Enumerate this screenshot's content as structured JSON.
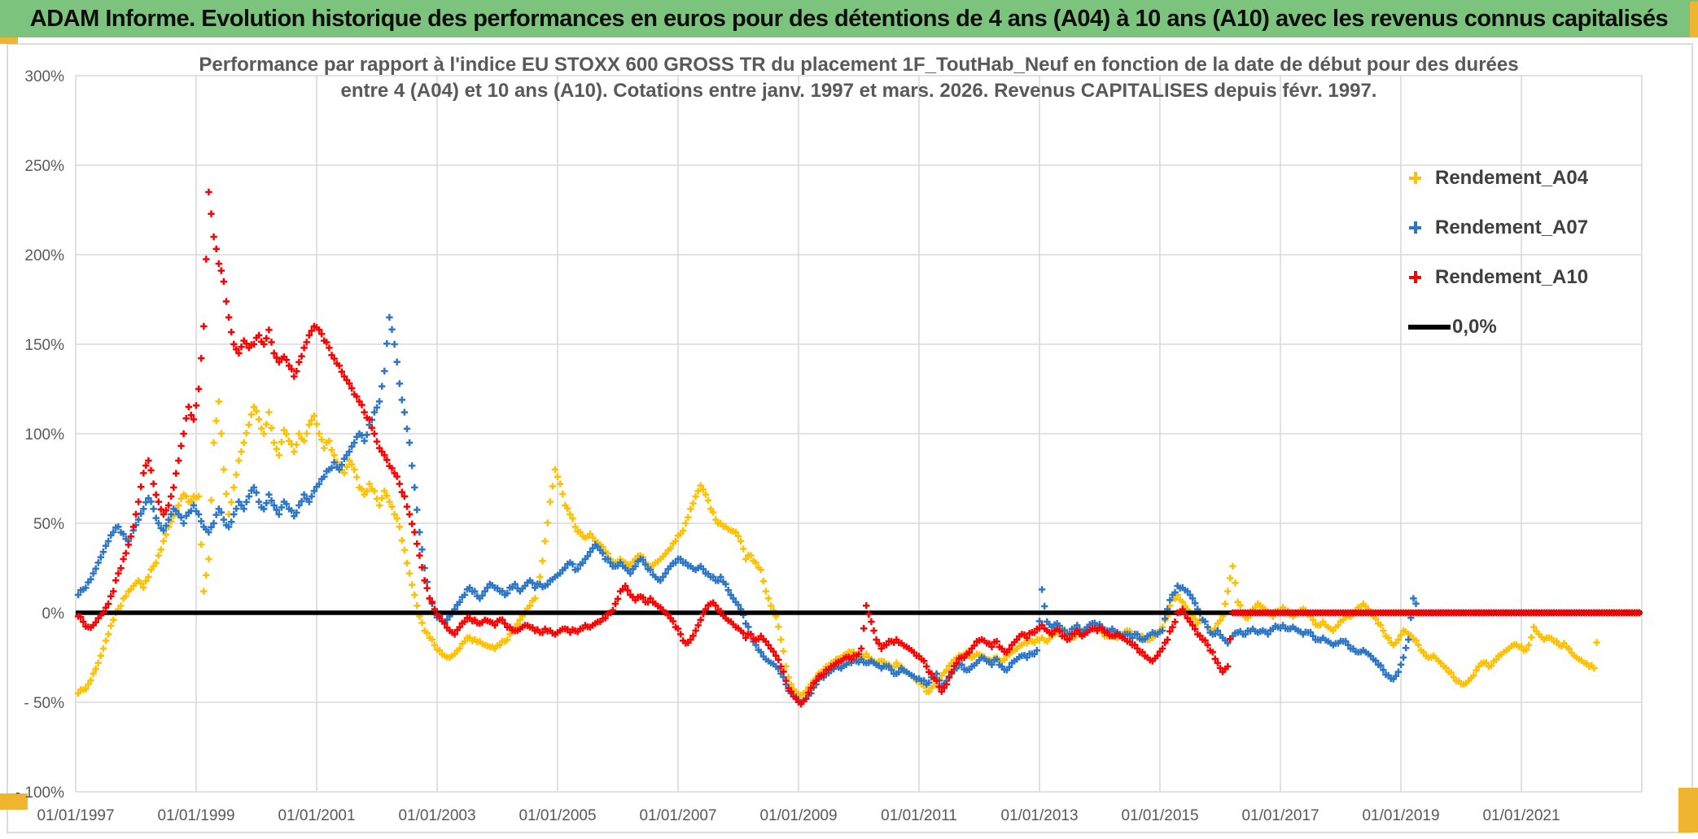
{
  "header": {
    "title": "ADAM Informe. Evolution historique des performances en euros pour des détentions de 4 ans (A04) à 10 ans (A10) avec les revenus connus capitalisés"
  },
  "chart": {
    "title_line1": "Performance par rapport à l'indice EU STOXX 600 GROSS TR  du placement 1F_ToutHab_Neuf en fonction de la date de début pour des durées",
    "title_line2": "entre 4 (A04) et 10 ans (A10). Cotations entre janv. 1997 et mars. 2026. Revenus CAPITALISES depuis févr. 1997.",
    "legend": {
      "items": [
        {
          "label": "Rendement_A04",
          "color": "#FFC000"
        },
        {
          "label": "Rendement_A07",
          "color": "#2B76C5"
        },
        {
          "label": "Rendement_A10",
          "color": "#FF0000"
        }
      ],
      "zero_line_label": "0,0%"
    },
    "y_axis": {
      "labels": [
        "300%",
        "250%",
        "200%",
        "150%",
        "100%",
        "50%",
        "0%",
        "- 50%",
        "- 100%"
      ],
      "values": [
        300,
        250,
        200,
        150,
        100,
        50,
        0,
        -50,
        -100
      ]
    },
    "x_axis": {
      "labels": [
        "01/01/1997",
        "01/01/1999",
        "01/01/2001",
        "01/01/2003",
        "01/01/2005",
        "01/01/2007",
        "01/01/2009",
        "01/01/2011",
        "01/01/2013",
        "01/01/2015",
        "01/01/2017",
        "01/01/2019",
        "01/01/2021"
      ],
      "years": [
        1997,
        1999,
        2001,
        2003,
        2005,
        2007,
        2009,
        2011,
        2013,
        2015,
        2017,
        2019,
        2021
      ]
    },
    "colors": {
      "grid": "#D9D9D9",
      "axis_text": "#595959",
      "zero_line": "#000000",
      "header_green": "#7CC47D",
      "frame_gold": "#EFB52E"
    }
  },
  "chart_data": {
    "type": "scatter",
    "title": "Performance vs EU STOXX 600 GROSS TR du placement 1F_ToutHab_Neuf",
    "x_unit": "date de début (année décimale)",
    "y_unit": "performance %",
    "x_range": [
      1997.0,
      2023.0
    ],
    "y_range": [
      -100,
      300
    ],
    "grid": true,
    "legend_position": "right-top",
    "reference_line": {
      "value": 0,
      "label": "0,0%",
      "color": "#000000"
    },
    "sampling": "monthly estimates, percent vs index; trailing zeros = future start dates plotted at 0%",
    "start_year": 1997,
    "step_months": 1,
    "series": [
      {
        "name": "Rendement_A04",
        "color": "#FFC000",
        "values": [
          -45,
          -43,
          -40,
          -34,
          -28,
          -20,
          -12,
          -4,
          2,
          8,
          12,
          15,
          18,
          14,
          20,
          26,
          32,
          40,
          48,
          54,
          60,
          66,
          62,
          65,
          65,
          12,
          30,
          95,
          118,
          80,
          55,
          70,
          85,
          95,
          105,
          115,
          108,
          100,
          112,
          95,
          88,
          102,
          96,
          90,
          100,
          96,
          105,
          110,
          100,
          92,
          96,
          88,
          82,
          78,
          85,
          80,
          70,
          66,
          72,
          68,
          60,
          68,
          62,
          55,
          48,
          35,
          22,
          10,
          -2,
          -10,
          -14,
          -18,
          -21,
          -24,
          -25,
          -23,
          -20,
          -16,
          -14,
          -15,
          -16,
          -18,
          -19,
          -20,
          -18,
          -16,
          -12,
          -8,
          -4,
          0,
          4,
          8,
          20,
          40,
          62,
          80,
          72,
          60,
          55,
          48,
          45,
          42,
          44,
          40,
          38,
          34,
          30,
          28,
          30,
          28,
          26,
          30,
          32,
          28,
          26,
          28,
          30,
          33,
          36,
          40,
          44,
          50,
          58,
          65,
          71,
          66,
          58,
          52,
          50,
          48,
          46,
          45,
          40,
          30,
          32,
          28,
          24,
          12,
          4,
          -2,
          -15,
          -30,
          -40,
          -44,
          -46,
          -44,
          -40,
          -37,
          -33,
          -30,
          -28,
          -26,
          -25,
          -23,
          -22,
          -24,
          -25,
          -23,
          -26,
          -28,
          -27,
          -29,
          -31,
          -28,
          -30,
          -33,
          -35,
          -38,
          -40,
          -44,
          -42,
          -38,
          -35,
          -32,
          -28,
          -26,
          -24,
          -22,
          -25,
          -23,
          -24,
          -26,
          -28,
          -25,
          -27,
          -24,
          -22,
          -20,
          -18,
          -17,
          -16,
          -15,
          -14,
          -16,
          -13,
          -11,
          -9,
          -12,
          -14,
          -12,
          -10,
          -11,
          -9,
          -10,
          -11,
          -13,
          -12,
          -14,
          -12,
          -10,
          -12,
          -14,
          -13,
          -15,
          -14,
          -12,
          -8,
          -2,
          8,
          10,
          6,
          2,
          -2,
          -6,
          -4,
          -8,
          -10,
          -6,
          -2,
          12,
          26,
          6,
          0,
          -3,
          2,
          5,
          3,
          0,
          -2,
          1,
          3,
          1,
          -2,
          0,
          2,
          -1,
          -4,
          -7,
          -5,
          -8,
          -10,
          -7,
          -4,
          -2,
          0,
          3,
          5,
          2,
          -2,
          -6,
          -10,
          -14,
          -18,
          -15,
          -10,
          -12,
          -15,
          -18,
          -22,
          -25,
          -24,
          -27,
          -30,
          -33,
          -36,
          -38,
          -40,
          -38,
          -35,
          -30,
          -28,
          -30,
          -27,
          -24,
          -22,
          -20,
          -18,
          -19,
          -21,
          -18,
          -8,
          -12,
          -15,
          -14,
          -16,
          -18,
          -17,
          -20,
          -24,
          -26,
          -28,
          -30,
          -31,
          0,
          0,
          0,
          0,
          0,
          0,
          0,
          0,
          0
        ]
      },
      {
        "name": "Rendement_A07",
        "color": "#2B76C5",
        "values": [
          10,
          13,
          17,
          22,
          28,
          34,
          40,
          45,
          48,
          44,
          40,
          46,
          52,
          58,
          64,
          58,
          50,
          46,
          52,
          58,
          55,
          50,
          56,
          60,
          55,
          48,
          45,
          50,
          58,
          52,
          48,
          55,
          62,
          58,
          65,
          70,
          62,
          58,
          66,
          60,
          55,
          62,
          58,
          54,
          60,
          66,
          62,
          68,
          72,
          76,
          80,
          84,
          80,
          86,
          90,
          95,
          100,
          96,
          105,
          112,
          118,
          135,
          165,
          150,
          128,
          112,
          95,
          70,
          45,
          25,
          8,
          0,
          -3,
          -5,
          -2,
          2,
          6,
          10,
          14,
          12,
          8,
          12,
          16,
          14,
          12,
          10,
          14,
          16,
          12,
          15,
          18,
          14,
          16,
          15,
          18,
          20,
          22,
          25,
          28,
          24,
          27,
          30,
          34,
          38,
          35,
          30,
          28,
          26,
          28,
          25,
          22,
          26,
          30,
          27,
          24,
          20,
          18,
          22,
          26,
          28,
          30,
          28,
          26,
          24,
          26,
          22,
          20,
          18,
          20,
          16,
          10,
          6,
          2,
          -6,
          -12,
          -18,
          -22,
          -26,
          -28,
          -30,
          -34,
          -40,
          -45,
          -47,
          -50,
          -48,
          -45,
          -40,
          -36,
          -34,
          -32,
          -30,
          -31,
          -29,
          -28,
          -27,
          -26,
          -28,
          -27,
          -29,
          -31,
          -30,
          -32,
          -34,
          -31,
          -33,
          -35,
          -37,
          -38,
          -40,
          -36,
          -34,
          -41,
          -38,
          -34,
          -31,
          -29,
          -32,
          -30,
          -28,
          -25,
          -27,
          -29,
          -26,
          -30,
          -32,
          -28,
          -26,
          -24,
          -25,
          -23,
          -21,
          13,
          -5,
          -8,
          -6,
          -10,
          -12,
          -9,
          -7,
          -11,
          -8,
          -6,
          -7,
          -8,
          -10,
          -9,
          -11,
          -13,
          -12,
          -14,
          -12,
          -15,
          -13,
          -11,
          -12,
          -10,
          2,
          10,
          15,
          14,
          12,
          8,
          2,
          -4,
          -8,
          -12,
          -10,
          -14,
          -17,
          -13,
          -11,
          -12,
          -10,
          -9,
          -11,
          -10,
          -12,
          -9,
          -8,
          -7,
          -9,
          -8,
          -10,
          -12,
          -11,
          -13,
          -15,
          -14,
          -16,
          -18,
          -17,
          -16,
          -18,
          -20,
          -22,
          -21,
          -23,
          -26,
          -29,
          -32,
          -35,
          -37,
          -33,
          -25,
          -15,
          8,
          0,
          0,
          0,
          0,
          0,
          0,
          0,
          0,
          0,
          0,
          0,
          0,
          0,
          0,
          0,
          0,
          0,
          0,
          0,
          0,
          0,
          0,
          0,
          0,
          0,
          0,
          0,
          0,
          0,
          0,
          0,
          0,
          0,
          0,
          0,
          0,
          0,
          0,
          0,
          0,
          0,
          0,
          0,
          0,
          0
        ]
      },
      {
        "name": "Rendement_A10",
        "color": "#FF0000",
        "values": [
          -2,
          -5,
          -8,
          -7,
          -3,
          0,
          5,
          12,
          22,
          30,
          38,
          48,
          62,
          78,
          85,
          72,
          62,
          55,
          60,
          70,
          85,
          100,
          115,
          108,
          125,
          160,
          235,
          210,
          195,
          185,
          165,
          150,
          145,
          152,
          148,
          150,
          155,
          150,
          158,
          145,
          140,
          143,
          138,
          132,
          140,
          148,
          155,
          160,
          158,
          152,
          148,
          142,
          138,
          132,
          128,
          122,
          118,
          112,
          108,
          100,
          92,
          88,
          82,
          78,
          72,
          65,
          55,
          45,
          32,
          18,
          8,
          2,
          -2,
          -6,
          -10,
          -12,
          -8,
          -5,
          -3,
          -4,
          -6,
          -4,
          -5,
          -7,
          -4,
          -6,
          -8,
          -10,
          -9,
          -7,
          -8,
          -10,
          -11,
          -9,
          -10,
          -12,
          -10,
          -9,
          -11,
          -10,
          -9,
          -7,
          -8,
          -6,
          -5,
          -3,
          0,
          5,
          12,
          15,
          10,
          7,
          9,
          6,
          8,
          5,
          3,
          0,
          -3,
          -8,
          -12,
          -17,
          -15,
          -10,
          -4,
          2,
          5,
          4,
          1,
          -3,
          -5,
          -8,
          -10,
          -14,
          -12,
          -15,
          -13,
          -16,
          -20,
          -24,
          -30,
          -38,
          -44,
          -48,
          -51,
          -48,
          -42,
          -38,
          -35,
          -32,
          -30,
          -28,
          -27,
          -25,
          -26,
          -24,
          -20,
          4,
          -5,
          -15,
          -20,
          -18,
          -16,
          -15,
          -17,
          -19,
          -21,
          -24,
          -26,
          -30,
          -34,
          -38,
          -44,
          -40,
          -33,
          -28,
          -25,
          -23,
          -20,
          -16,
          -15,
          -17,
          -19,
          -16,
          -20,
          -22,
          -18,
          -15,
          -12,
          -14,
          -11,
          -9,
          -7,
          -10,
          -12,
          -9,
          -13,
          -15,
          -12,
          -10,
          -13,
          -11,
          -9,
          -10,
          -9,
          -11,
          -13,
          -12,
          -14,
          -16,
          -18,
          -20,
          -22,
          -25,
          -27,
          -24,
          -20,
          -15,
          -8,
          0,
          2,
          -3,
          -7,
          -12,
          -15,
          -18,
          -22,
          -28,
          -33,
          -30,
          0,
          0,
          0,
          0,
          0,
          0,
          0,
          0,
          0,
          0,
          0,
          0,
          0,
          0,
          0,
          0,
          0,
          0,
          0,
          0,
          0,
          0,
          0,
          0,
          0,
          0,
          0,
          0,
          0,
          0,
          0,
          0,
          0,
          0,
          0,
          0,
          0,
          0,
          0,
          0,
          0,
          0,
          0,
          0,
          0,
          0,
          0,
          0,
          0,
          0,
          0,
          0,
          0,
          0,
          0,
          0,
          0,
          0,
          0,
          0,
          0,
          0,
          0,
          0,
          0,
          0,
          0,
          0,
          0,
          0,
          0,
          0,
          0,
          0,
          0,
          0,
          0,
          0,
          0,
          0,
          0,
          0
        ]
      }
    ]
  }
}
